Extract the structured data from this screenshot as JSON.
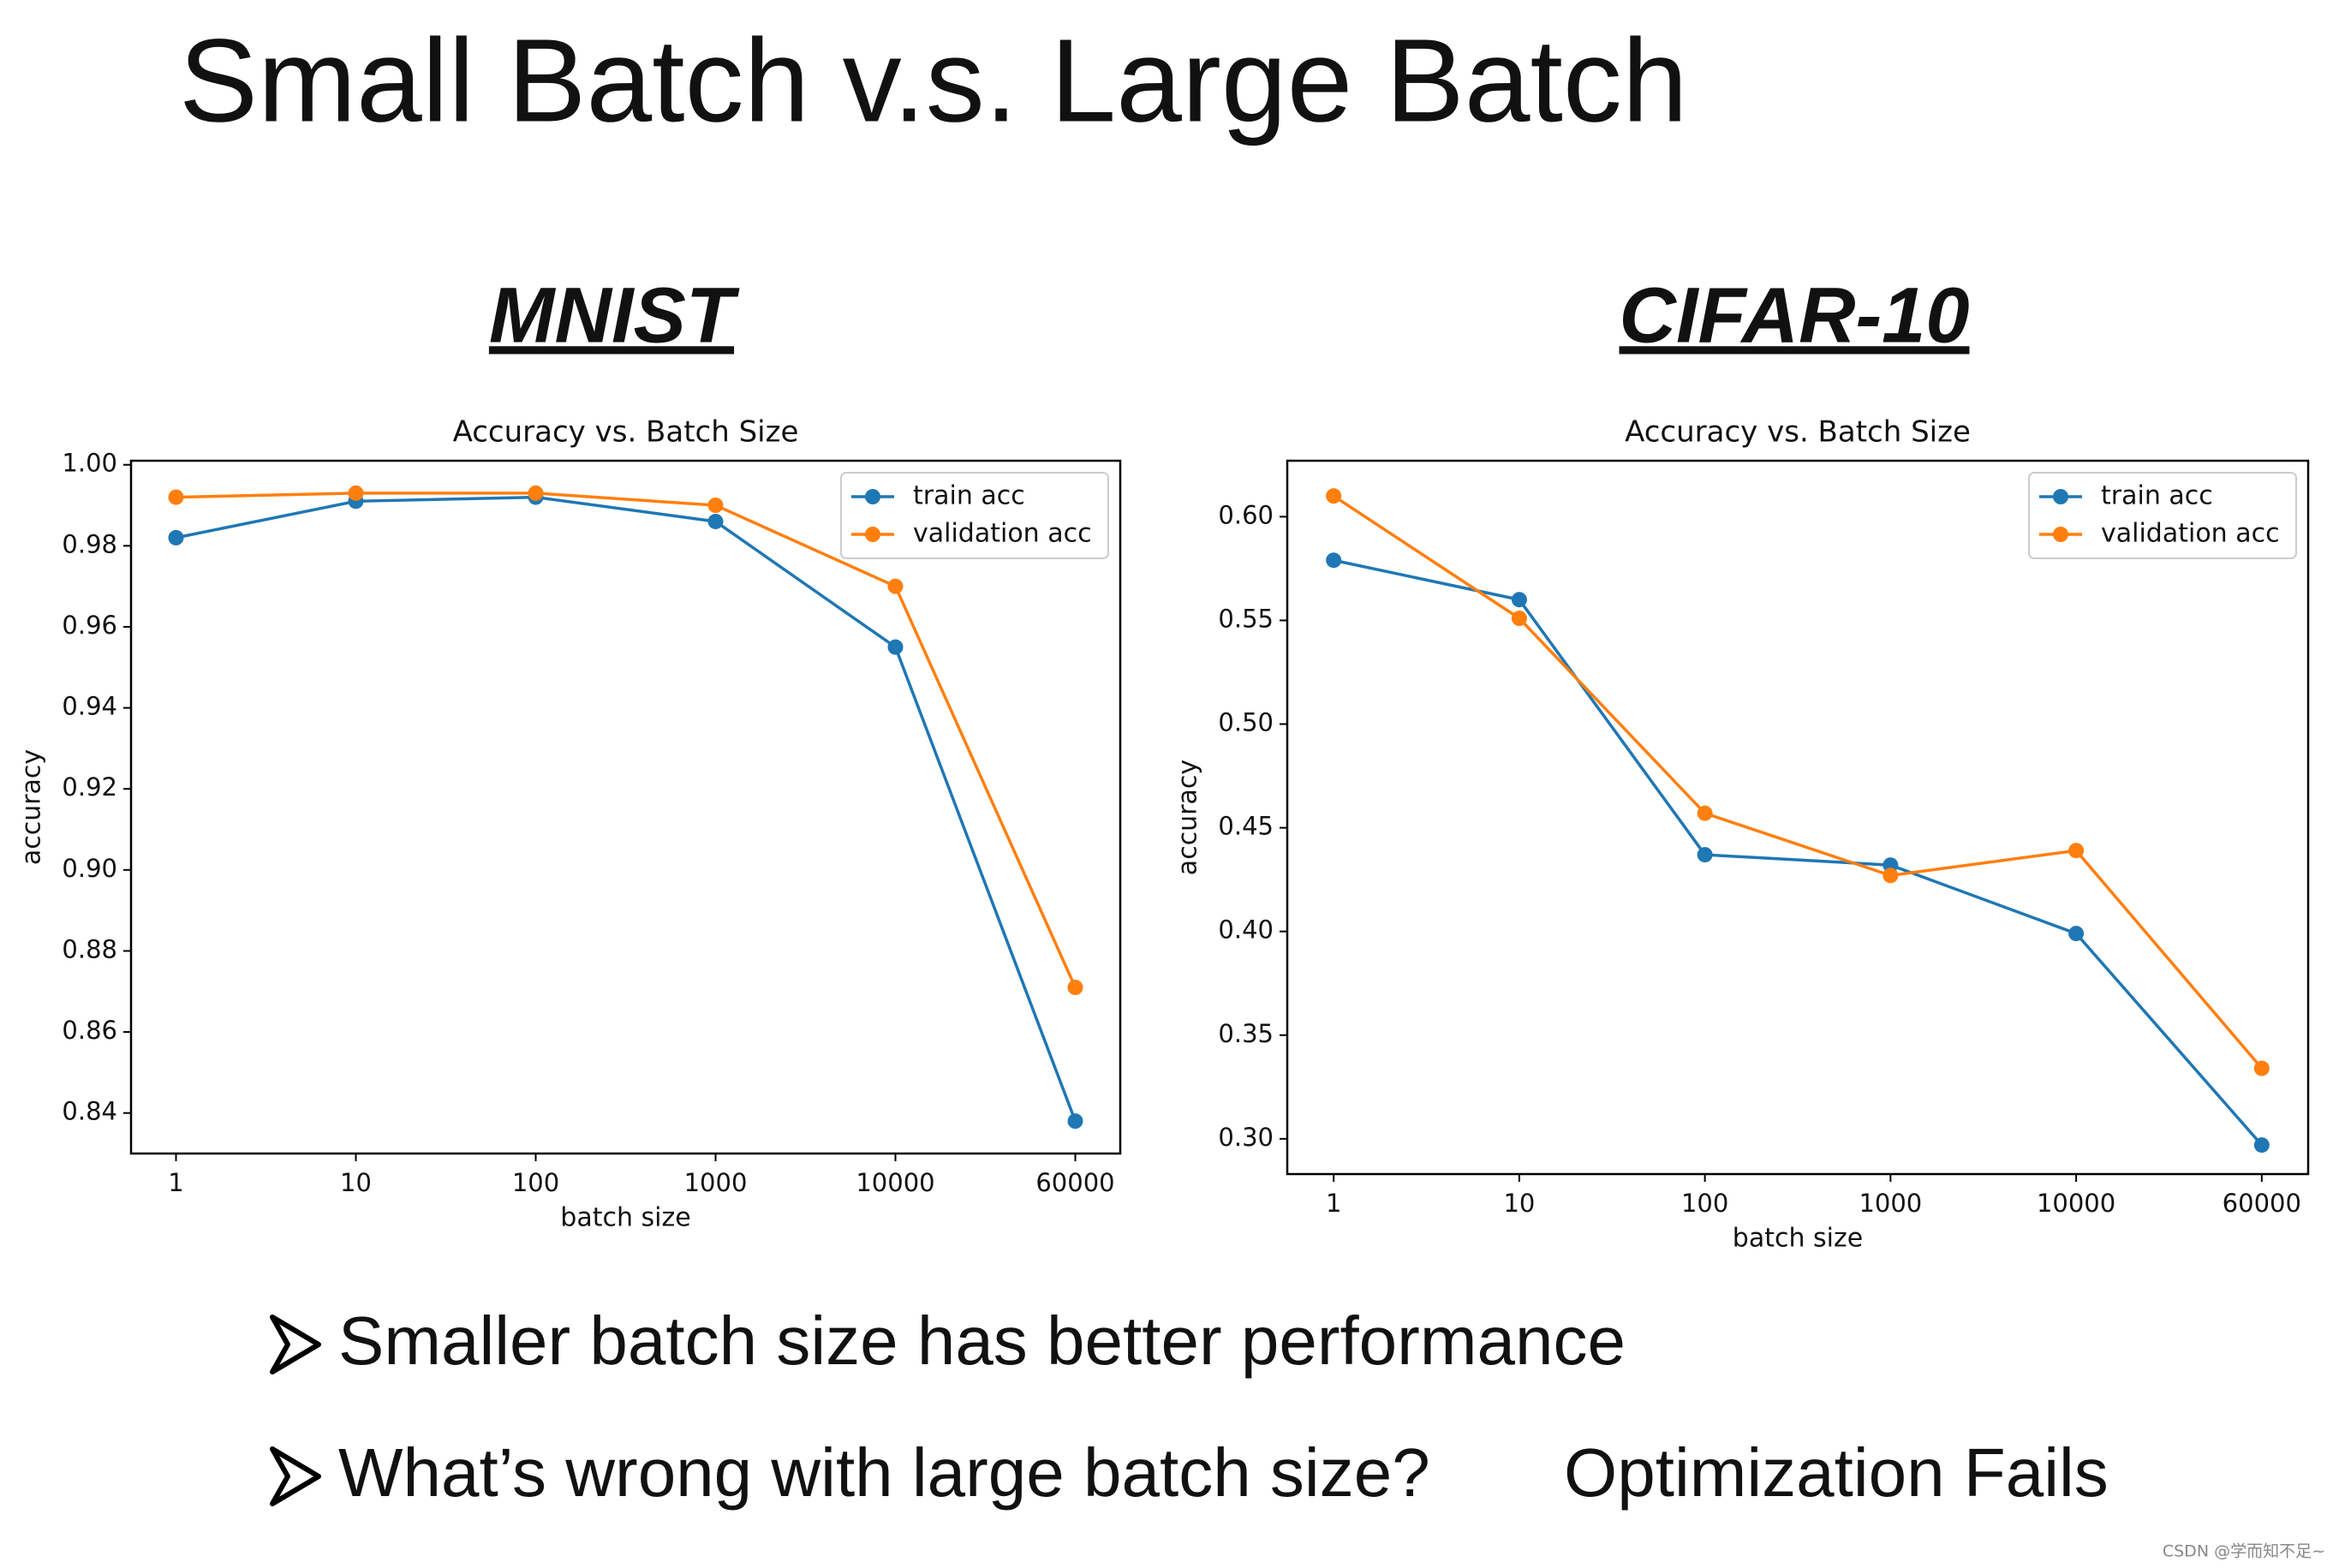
{
  "title": "Small Batch v.s. Large Batch",
  "chart_data": [
    {
      "type": "line",
      "heading": "MNIST",
      "title": "Accuracy vs. Batch Size",
      "x_label": "batch size",
      "y_label": "accuracy",
      "categories": [
        "1",
        "10",
        "100",
        "1000",
        "10000",
        "60000"
      ],
      "series": [
        {
          "name": "train acc",
          "color": "#1f77b4",
          "values": [
            0.982,
            0.991,
            0.992,
            0.986,
            0.955,
            0.838
          ]
        },
        {
          "name": "validation acc",
          "color": "#ff7f0e",
          "values": [
            0.992,
            0.993,
            0.993,
            0.99,
            0.97,
            0.871
          ]
        }
      ],
      "ylim": [
        0.83,
        1.001
      ],
      "yticks": [
        0.84,
        0.86,
        0.88,
        {
          "value": 0.9,
          "label": "0.90"
        },
        0.92,
        0.94,
        0.96,
        0.98,
        {
          "value": 1,
          "label": "1.00"
        }
      ],
      "legend": "upper right"
    },
    {
      "type": "line",
      "heading": "CIFAR-10",
      "title": "Accuracy vs. Batch Size",
      "x_label": "batch size",
      "y_label": "accuracy",
      "categories": [
        "1",
        "10",
        "100",
        "1000",
        "10000",
        "60000"
      ],
      "series": [
        {
          "name": "train acc",
          "color": "#1f77b4",
          "values": [
            0.579,
            0.56,
            0.437,
            0.432,
            0.399,
            0.297
          ]
        },
        {
          "name": "validation acc",
          "color": "#ff7f0e",
          "values": [
            0.61,
            0.551,
            0.457,
            0.427,
            0.439,
            0.334
          ]
        }
      ],
      "ylim": [
        0.283,
        0.627
      ],
      "yticks": [
        {
          "value": 0.3,
          "label": "0.30"
        },
        0.35,
        {
          "value": 0.4,
          "label": "0.40"
        },
        0.45,
        {
          "value": 0.5,
          "label": "0.50"
        },
        0.55,
        {
          "value": 0.6,
          "label": "0.60"
        }
      ],
      "legend": "upper right"
    }
  ],
  "bullets": [
    {
      "text": "Smaller batch size has better performance"
    },
    {
      "text": "What’s wrong with large batch size?",
      "answer": "Optimization Fails"
    }
  ],
  "watermark": "CSDN @学而知不足~"
}
